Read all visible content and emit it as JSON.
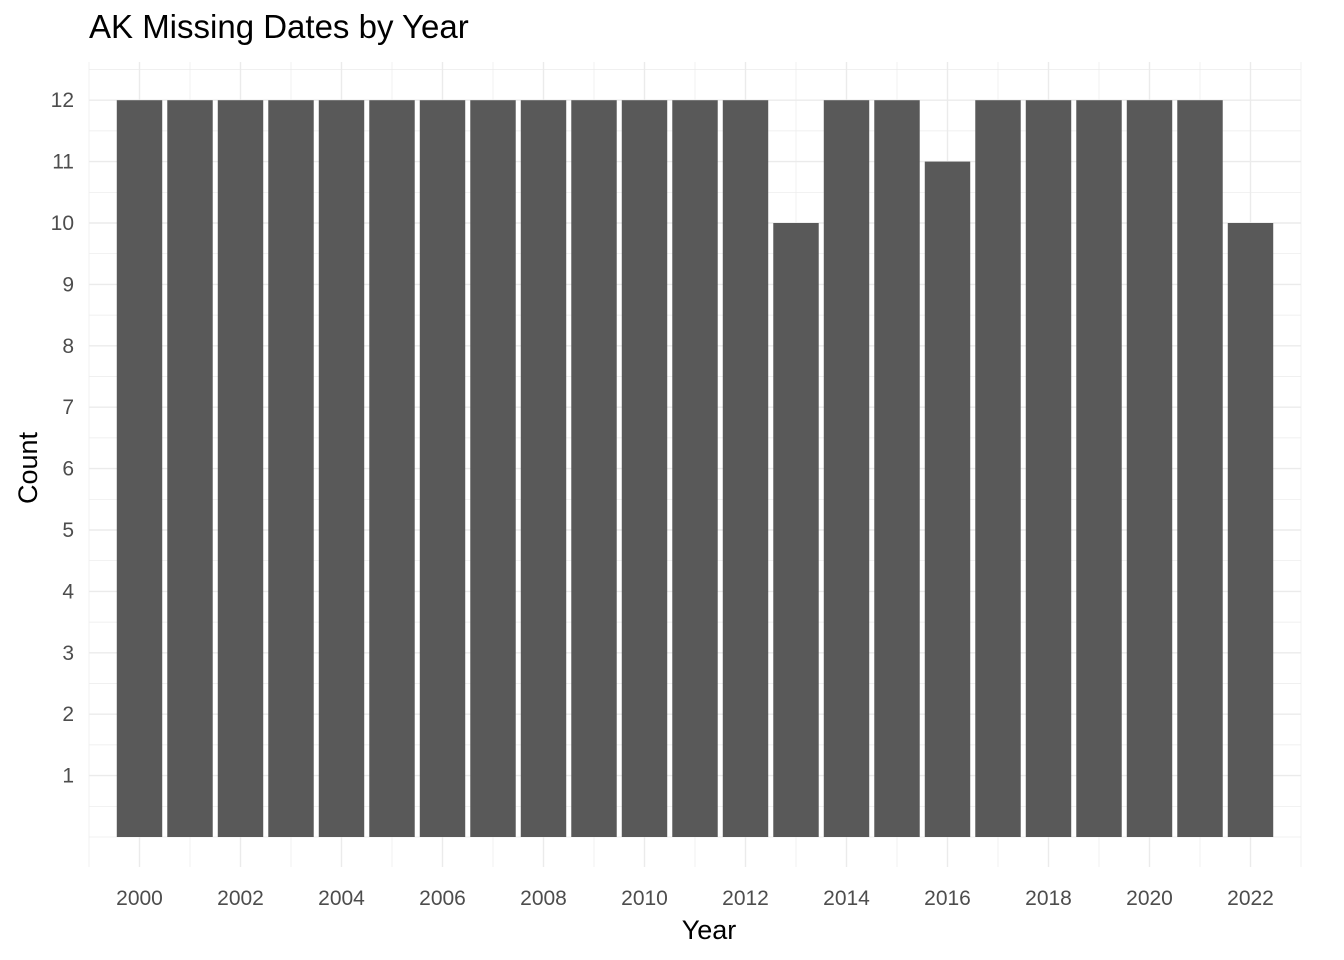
{
  "chart_data": {
    "type": "bar",
    "title": "AK Missing Dates by Year",
    "xlabel": "Year",
    "ylabel": "Count",
    "categories": [
      2000,
      2001,
      2002,
      2003,
      2004,
      2005,
      2006,
      2007,
      2008,
      2009,
      2010,
      2011,
      2012,
      2013,
      2014,
      2015,
      2016,
      2017,
      2018,
      2019,
      2020,
      2021,
      2022
    ],
    "values": [
      12,
      12,
      12,
      12,
      12,
      12,
      12,
      12,
      12,
      12,
      12,
      12,
      12,
      10,
      12,
      12,
      11,
      12,
      12,
      12,
      12,
      12,
      10
    ],
    "x_tick_labels": [
      "2000",
      "2002",
      "2004",
      "2006",
      "2008",
      "2010",
      "2012",
      "2014",
      "2016",
      "2018",
      "2020",
      "2022"
    ],
    "y_tick_labels": [
      "1",
      "2",
      "3",
      "4",
      "5",
      "6",
      "7",
      "8",
      "9",
      "10",
      "11",
      "12"
    ],
    "xlim": [
      1999,
      2023
    ],
    "ylim": [
      0,
      12.6
    ],
    "grid": true,
    "legend": "none",
    "colors": {
      "bar": "#595959",
      "grid": "#ebebeb",
      "tick_text": "#4d4d4d"
    }
  }
}
